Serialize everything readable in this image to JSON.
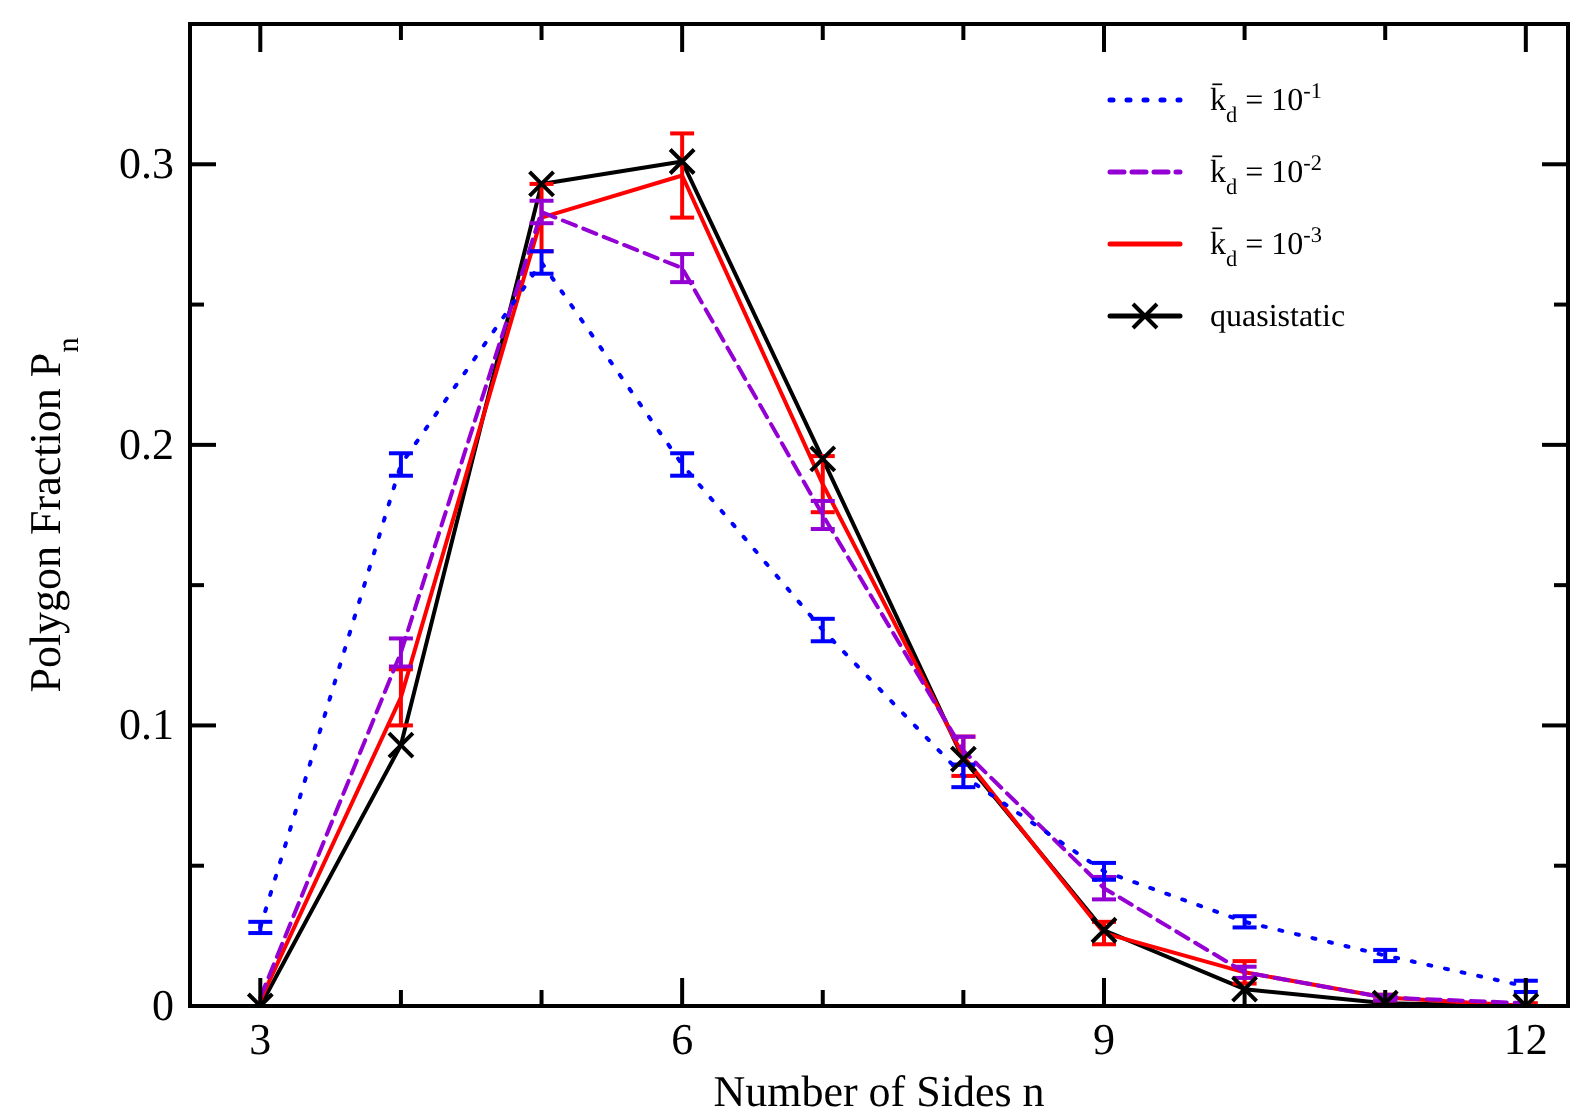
{
  "chart_data": {
    "type": "line",
    "xlabel": "Number of Sides  n",
    "ylabel": "Polygon Fraction  P$_{n}$",
    "x": [
      3,
      4,
      5,
      6,
      7,
      8,
      9,
      10,
      11,
      12
    ],
    "xlim": [
      2.5,
      12.3
    ],
    "xticks": [
      3,
      {
        "value": 4,
        "label": null
      },
      {
        "value": 5,
        "label": null
      },
      6,
      {
        "value": 7,
        "label": null
      },
      {
        "value": 8,
        "label": null
      },
      9,
      {
        "value": 10,
        "label": null
      },
      {
        "value": 11,
        "label": null
      },
      12
    ],
    "ylim": [
      0,
      0.35
    ],
    "yticks": [
      0,
      {
        "value": 0.05,
        "label": null
      },
      0.1,
      {
        "value": 0.15,
        "label": null
      },
      0.2,
      {
        "value": 0.25,
        "label": null
      },
      0.3
    ],
    "grid": false,
    "legend": "top right",
    "series": [
      {
        "name": "k̄$_{d}$ = 10$^{-1}$",
        "color": "#0000ff",
        "line_style": "dotted",
        "marker": "none",
        "values": [
          0.028,
          0.193,
          0.265,
          0.193,
          0.134,
          0.082,
          0.048,
          0.03,
          0.018,
          0.007
        ],
        "errors": [
          0.002,
          0.004,
          0.004,
          0.004,
          0.004,
          0.004,
          0.003,
          0.002,
          0.002,
          0.002
        ]
      },
      {
        "name": "k̄$_{d}$ = 10$^{-2}$",
        "color": "#9400d3",
        "line_style": "dashed",
        "marker": "none",
        "values": [
          0.003,
          0.126,
          0.283,
          0.263,
          0.175,
          0.091,
          0.042,
          0.012,
          0.003,
          0.001
        ],
        "errors": [
          null,
          0.005,
          0.004,
          0.005,
          0.005,
          0.005,
          0.004,
          0.002,
          0.001,
          null
        ]
      },
      {
        "name": "k̄$_{d}$ = 10$^{-3}$",
        "color": "#ff0000",
        "line_style": "solid",
        "marker": "none",
        "values": [
          0.002,
          0.11,
          0.281,
          0.296,
          0.186,
          0.089,
          0.026,
          0.012,
          0.003,
          0.0
        ],
        "errors": [
          null,
          0.01,
          0.012,
          0.015,
          0.01,
          0.007,
          0.004,
          0.004,
          0.001,
          0.001
        ]
      },
      {
        "name": "quasistatic",
        "color": "#000000",
        "line_style": "solid",
        "marker": "cross",
        "values": [
          0.0,
          0.093,
          0.293,
          0.301,
          0.195,
          0.088,
          0.027,
          0.006,
          0.001,
          0.0
        ]
      }
    ]
  }
}
